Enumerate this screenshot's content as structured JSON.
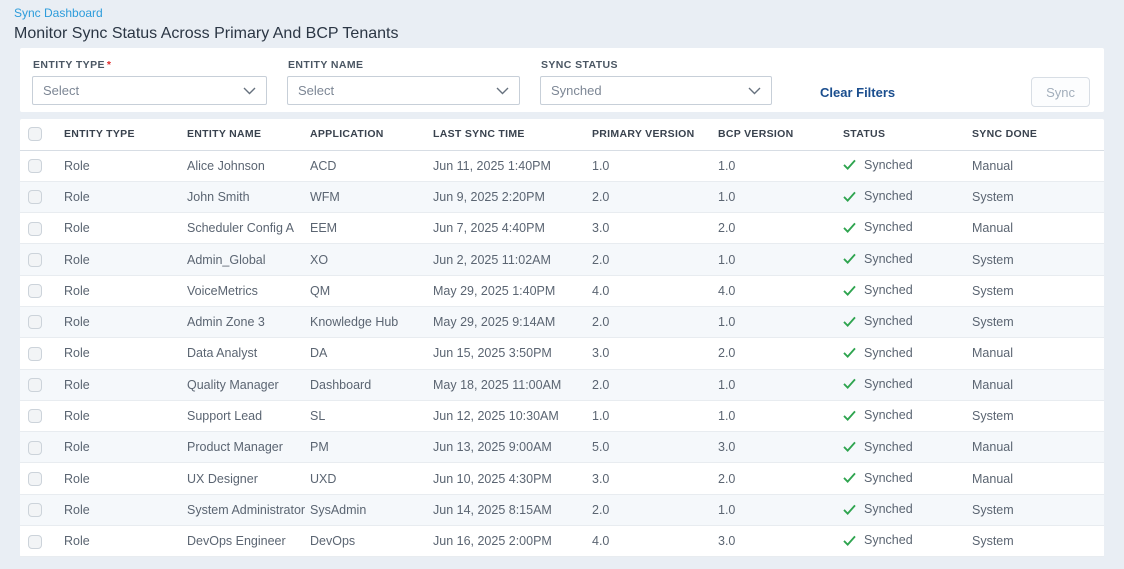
{
  "page": {
    "breadcrumb": "Sync Dashboard",
    "title": "Monitor Sync Status Across Primary And BCP Tenants"
  },
  "filters": {
    "entity_type": {
      "label": "ENTITY TYPE",
      "required_mark": "*",
      "value": "Select"
    },
    "entity_name": {
      "label": "ENTITY NAME",
      "value": "Select"
    },
    "sync_status": {
      "label": "SYNC STATUS",
      "value": "Synched"
    },
    "clear_filters_label": "Clear Filters",
    "sync_button_label": "Sync"
  },
  "colors": {
    "breadcrumb_link": "#2d9cdb",
    "clear_filters_link": "#1b4e8e",
    "status_check_green": "#2ea44f",
    "required_red": "#e02b2b"
  },
  "table": {
    "columns": [
      "ENTITY TYPE",
      "ENTITY NAME",
      "APPLICATION",
      "LAST SYNC TIME",
      "PRIMARY VERSION",
      "BCP VERSION",
      "STATUS",
      "SYNC DONE"
    ],
    "rows": [
      {
        "entity_type": "Role",
        "entity_name": "Alice Johnson",
        "application": "ACD",
        "last_sync_time": "Jun 11, 2025 1:40PM",
        "primary_version": "1.0",
        "bcp_version": "1.0",
        "status": "Synched",
        "sync_done": "Manual"
      },
      {
        "entity_type": "Role",
        "entity_name": "John Smith",
        "application": "WFM",
        "last_sync_time": "Jun 9, 2025 2:20PM",
        "primary_version": "2.0",
        "bcp_version": "1.0",
        "status": "Synched",
        "sync_done": "System"
      },
      {
        "entity_type": "Role",
        "entity_name": "Scheduler Config A",
        "application": "EEM",
        "last_sync_time": "Jun 7, 2025 4:40PM",
        "primary_version": "3.0",
        "bcp_version": "2.0",
        "status": "Synched",
        "sync_done": "Manual"
      },
      {
        "entity_type": "Role",
        "entity_name": "Admin_Global",
        "application": "XO",
        "last_sync_time": "Jun 2, 2025 11:02AM",
        "primary_version": "2.0",
        "bcp_version": "1.0",
        "status": "Synched",
        "sync_done": "System"
      },
      {
        "entity_type": "Role",
        "entity_name": "VoiceMetrics",
        "application": "QM",
        "last_sync_time": "May 29, 2025 1:40PM",
        "primary_version": "4.0",
        "bcp_version": "4.0",
        "status": "Synched",
        "sync_done": "System"
      },
      {
        "entity_type": "Role",
        "entity_name": "Admin Zone 3",
        "application": "Knowledge Hub",
        "last_sync_time": "May 29, 2025 9:14AM",
        "primary_version": "2.0",
        "bcp_version": "1.0",
        "status": "Synched",
        "sync_done": "System"
      },
      {
        "entity_type": "Role",
        "entity_name": "Data Analyst",
        "application": "DA",
        "last_sync_time": "Jun 15, 2025 3:50PM",
        "primary_version": "3.0",
        "bcp_version": "2.0",
        "status": "Synched",
        "sync_done": "Manual"
      },
      {
        "entity_type": "Role",
        "entity_name": "Quality Manager",
        "application": "Dashboard",
        "last_sync_time": "May 18, 2025 11:00AM",
        "primary_version": "2.0",
        "bcp_version": "1.0",
        "status": "Synched",
        "sync_done": "Manual"
      },
      {
        "entity_type": "Role",
        "entity_name": "Support Lead",
        "application": "SL",
        "last_sync_time": "Jun 12, 2025 10:30AM",
        "primary_version": "1.0",
        "bcp_version": "1.0",
        "status": "Synched",
        "sync_done": "System"
      },
      {
        "entity_type": "Role",
        "entity_name": "Product Manager",
        "application": "PM",
        "last_sync_time": "Jun 13, 2025 9:00AM",
        "primary_version": "5.0",
        "bcp_version": "3.0",
        "status": "Synched",
        "sync_done": "Manual"
      },
      {
        "entity_type": "Role",
        "entity_name": "UX Designer",
        "application": "UXD",
        "last_sync_time": "Jun 10, 2025 4:30PM",
        "primary_version": "3.0",
        "bcp_version": "2.0",
        "status": "Synched",
        "sync_done": "Manual"
      },
      {
        "entity_type": "Role",
        "entity_name": "System Administrator",
        "application": "SysAdmin",
        "last_sync_time": "Jun 14, 2025 8:15AM",
        "primary_version": "2.0",
        "bcp_version": "1.0",
        "status": "Synched",
        "sync_done": "System"
      },
      {
        "entity_type": "Role",
        "entity_name": "DevOps Engineer",
        "application": "DevOps",
        "last_sync_time": "Jun 16, 2025 2:00PM",
        "primary_version": "4.0",
        "bcp_version": "3.0",
        "status": "Synched",
        "sync_done": "System"
      }
    ]
  }
}
